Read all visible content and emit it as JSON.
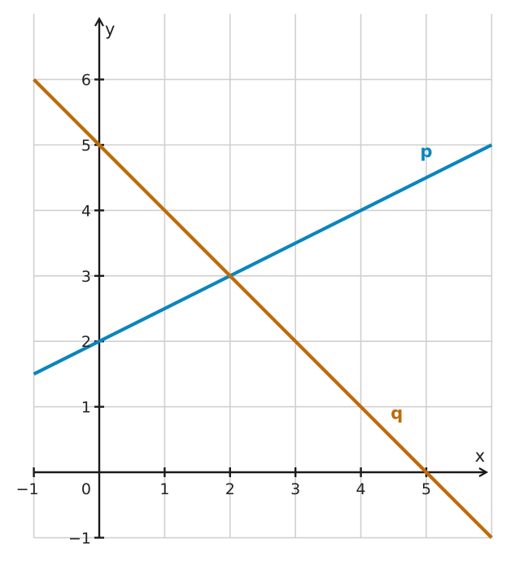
{
  "chart_data": {
    "type": "line",
    "title": "",
    "xlabel": "x",
    "ylabel": "y",
    "xlim": [
      -1,
      6
    ],
    "ylim": [
      -1,
      7
    ],
    "grid": true,
    "x_ticks": [
      -1,
      1,
      2,
      3,
      4,
      5
    ],
    "y_ticks": [
      -1,
      1,
      2,
      3,
      4,
      5,
      6
    ],
    "x_tick_labels": [
      "−1",
      "1",
      "2",
      "3",
      "4",
      "5"
    ],
    "y_tick_labels": [
      "−1",
      "1",
      "2",
      "3",
      "4",
      "5",
      "6"
    ],
    "origin_label": "0",
    "series": [
      {
        "name": "p",
        "color": "#0a85bd",
        "equation": "y = 0.5x + 2",
        "x": [
          -1,
          6
        ],
        "y": [
          1.5,
          5
        ]
      },
      {
        "name": "q",
        "color": "#bf6a0a",
        "equation": "y = -x + 5",
        "x": [
          -1,
          6
        ],
        "y": [
          6,
          -1
        ]
      }
    ]
  }
}
